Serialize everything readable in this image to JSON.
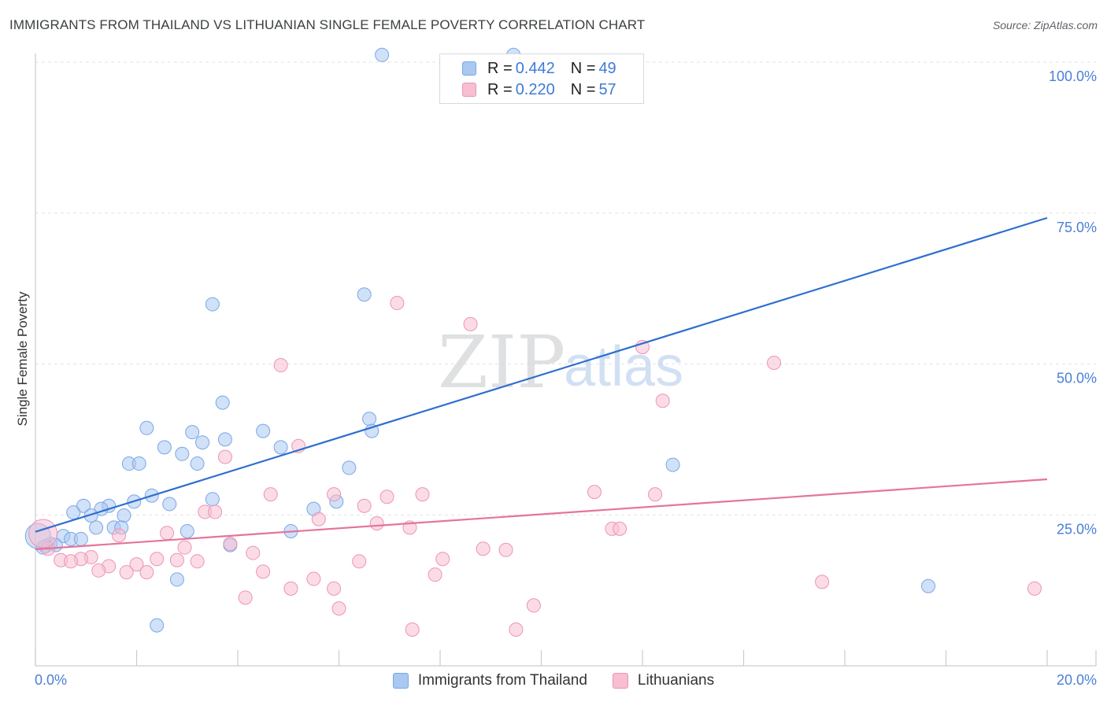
{
  "title": "IMMIGRANTS FROM THAILAND VS LITHUANIAN SINGLE FEMALE POVERTY CORRELATION CHART",
  "source": "Source: ZipAtlas.com",
  "watermark": {
    "zip": "ZIP",
    "atlas": "atlas"
  },
  "legend": {
    "rows": [
      {
        "r_label": "R =",
        "r_value": "0.442",
        "n_label": "N =",
        "n_value": "49",
        "color": "#a9c8f2",
        "border": "#7aa7e6"
      },
      {
        "r_label": "R =",
        "r_value": "0.220",
        "n_label": "N =",
        "n_value": "57",
        "color": "#f7bfd1",
        "border": "#ee93b3"
      }
    ]
  },
  "bottom_legend": [
    {
      "label": "Immigrants from Thailand",
      "color": "#a9c8f2",
      "border": "#7aa7e6"
    },
    {
      "label": "Lithuanians",
      "color": "#f7bfd1",
      "border": "#ee93b3"
    }
  ],
  "chart_data": {
    "type": "scatter",
    "title": "IMMIGRANTS FROM THAILAND VS LITHUANIAN SINGLE FEMALE POVERTY CORRELATION CHART",
    "xlabel": "",
    "ylabel": "Single Female Poverty",
    "xlim": [
      0,
      20
    ],
    "ylim": [
      0,
      102
    ],
    "x_tick_labels": [
      "0.0%",
      "20.0%"
    ],
    "y_ticks": [
      25,
      50,
      75,
      100
    ],
    "y_tick_labels": [
      "25.0%",
      "50.0%",
      "75.0%",
      "100.0%"
    ],
    "grid": true,
    "colors": {
      "thailand_line": "#2f6fd0",
      "lithuanian_line": "#e5749a",
      "axis_text": "#4a7fd6"
    },
    "series": [
      {
        "name": "Immigrants from Thailand",
        "color": "#a9c8f2",
        "trend": {
          "x": [
            0,
            20
          ],
          "y": [
            22.2,
            74.2
          ]
        },
        "points": [
          {
            "x": 6.85,
            "y": 101.2
          },
          {
            "x": 9.45,
            "y": 101.2
          },
          {
            "x": 3.5,
            "y": 59.9
          },
          {
            "x": 6.5,
            "y": 61.5
          },
          {
            "x": 3.7,
            "y": 43.6
          },
          {
            "x": 6.6,
            "y": 40.9
          },
          {
            "x": 6.65,
            "y": 38.9
          },
          {
            "x": 2.2,
            "y": 39.4
          },
          {
            "x": 3.1,
            "y": 38.7
          },
          {
            "x": 3.3,
            "y": 37.0
          },
          {
            "x": 3.75,
            "y": 37.5
          },
          {
            "x": 4.5,
            "y": 38.9
          },
          {
            "x": 4.85,
            "y": 36.2
          },
          {
            "x": 2.55,
            "y": 36.2
          },
          {
            "x": 2.9,
            "y": 35.1
          },
          {
            "x": 3.2,
            "y": 33.5
          },
          {
            "x": 1.85,
            "y": 33.5
          },
          {
            "x": 2.05,
            "y": 33.5
          },
          {
            "x": 6.2,
            "y": 32.8
          },
          {
            "x": 2.3,
            "y": 28.2
          },
          {
            "x": 1.95,
            "y": 27.2
          },
          {
            "x": 2.65,
            "y": 26.8
          },
          {
            "x": 3.5,
            "y": 27.6
          },
          {
            "x": 5.95,
            "y": 27.2
          },
          {
            "x": 5.5,
            "y": 26.0
          },
          {
            "x": 0.95,
            "y": 26.5
          },
          {
            "x": 1.45,
            "y": 26.5
          },
          {
            "x": 1.3,
            "y": 26.0
          },
          {
            "x": 0.75,
            "y": 25.4
          },
          {
            "x": 1.1,
            "y": 24.9
          },
          {
            "x": 1.75,
            "y": 24.9
          },
          {
            "x": 1.2,
            "y": 22.9
          },
          {
            "x": 1.55,
            "y": 22.9
          },
          {
            "x": 1.7,
            "y": 22.9
          },
          {
            "x": 3.0,
            "y": 22.3
          },
          {
            "x": 5.05,
            "y": 22.3
          },
          {
            "x": 0.55,
            "y": 21.5
          },
          {
            "x": 0.7,
            "y": 21.0
          },
          {
            "x": 0.9,
            "y": 21.0
          },
          {
            "x": 0.3,
            "y": 20.2
          },
          {
            "x": 0.4,
            "y": 20.0
          },
          {
            "x": 0.2,
            "y": 19.8
          },
          {
            "x": 0.15,
            "y": 19.6
          },
          {
            "x": 3.85,
            "y": 20.0
          },
          {
            "x": 2.8,
            "y": 14.3
          },
          {
            "x": 2.4,
            "y": 6.7
          },
          {
            "x": 12.6,
            "y": 33.3
          },
          {
            "x": 17.65,
            "y": 13.2
          },
          {
            "x": 0.05,
            "y": 21.5,
            "r": 16
          }
        ]
      },
      {
        "name": "Lithuanians",
        "color": "#f7bfd1",
        "trend": {
          "x": [
            0,
            20
          ],
          "y": [
            19.3,
            30.9
          ]
        },
        "points": [
          {
            "x": 7.15,
            "y": 60.1
          },
          {
            "x": 8.6,
            "y": 56.6
          },
          {
            "x": 12.0,
            "y": 52.8
          },
          {
            "x": 14.6,
            "y": 50.2
          },
          {
            "x": 4.85,
            "y": 49.8
          },
          {
            "x": 12.4,
            "y": 43.9
          },
          {
            "x": 5.2,
            "y": 36.4
          },
          {
            "x": 3.75,
            "y": 34.6
          },
          {
            "x": 11.05,
            "y": 28.8
          },
          {
            "x": 12.25,
            "y": 28.4
          },
          {
            "x": 7.65,
            "y": 28.4
          },
          {
            "x": 4.65,
            "y": 28.4
          },
          {
            "x": 6.95,
            "y": 28.0
          },
          {
            "x": 5.9,
            "y": 28.4
          },
          {
            "x": 6.5,
            "y": 26.5
          },
          {
            "x": 3.35,
            "y": 25.5
          },
          {
            "x": 3.55,
            "y": 25.5
          },
          {
            "x": 5.6,
            "y": 24.3
          },
          {
            "x": 6.75,
            "y": 23.6
          },
          {
            "x": 7.4,
            "y": 22.9
          },
          {
            "x": 11.4,
            "y": 22.7
          },
          {
            "x": 11.55,
            "y": 22.7
          },
          {
            "x": 2.6,
            "y": 22.0
          },
          {
            "x": 1.65,
            "y": 21.6
          },
          {
            "x": 3.85,
            "y": 20.2
          },
          {
            "x": 2.95,
            "y": 19.6
          },
          {
            "x": 8.85,
            "y": 19.4
          },
          {
            "x": 9.3,
            "y": 19.2
          },
          {
            "x": 4.3,
            "y": 18.7
          },
          {
            "x": 1.1,
            "y": 18.0
          },
          {
            "x": 0.9,
            "y": 17.7
          },
          {
            "x": 0.5,
            "y": 17.5
          },
          {
            "x": 0.7,
            "y": 17.3
          },
          {
            "x": 2.4,
            "y": 17.7
          },
          {
            "x": 2.8,
            "y": 17.5
          },
          {
            "x": 3.2,
            "y": 17.3
          },
          {
            "x": 8.05,
            "y": 17.7
          },
          {
            "x": 6.4,
            "y": 17.3
          },
          {
            "x": 2.0,
            "y": 16.8
          },
          {
            "x": 1.45,
            "y": 16.5
          },
          {
            "x": 1.25,
            "y": 15.8
          },
          {
            "x": 1.8,
            "y": 15.5
          },
          {
            "x": 2.2,
            "y": 15.5
          },
          {
            "x": 4.5,
            "y": 15.6
          },
          {
            "x": 7.9,
            "y": 15.1
          },
          {
            "x": 5.5,
            "y": 14.4
          },
          {
            "x": 15.55,
            "y": 13.9
          },
          {
            "x": 5.05,
            "y": 12.8
          },
          {
            "x": 5.9,
            "y": 12.8
          },
          {
            "x": 19.75,
            "y": 12.8
          },
          {
            "x": 4.15,
            "y": 11.3
          },
          {
            "x": 9.85,
            "y": 10.0
          },
          {
            "x": 6.0,
            "y": 9.5
          },
          {
            "x": 7.45,
            "y": 6.0
          },
          {
            "x": 9.5,
            "y": 6.0
          },
          {
            "x": 0.25,
            "y": 19.4
          },
          {
            "x": 0.15,
            "y": 21.9,
            "r": 18
          }
        ]
      }
    ]
  }
}
